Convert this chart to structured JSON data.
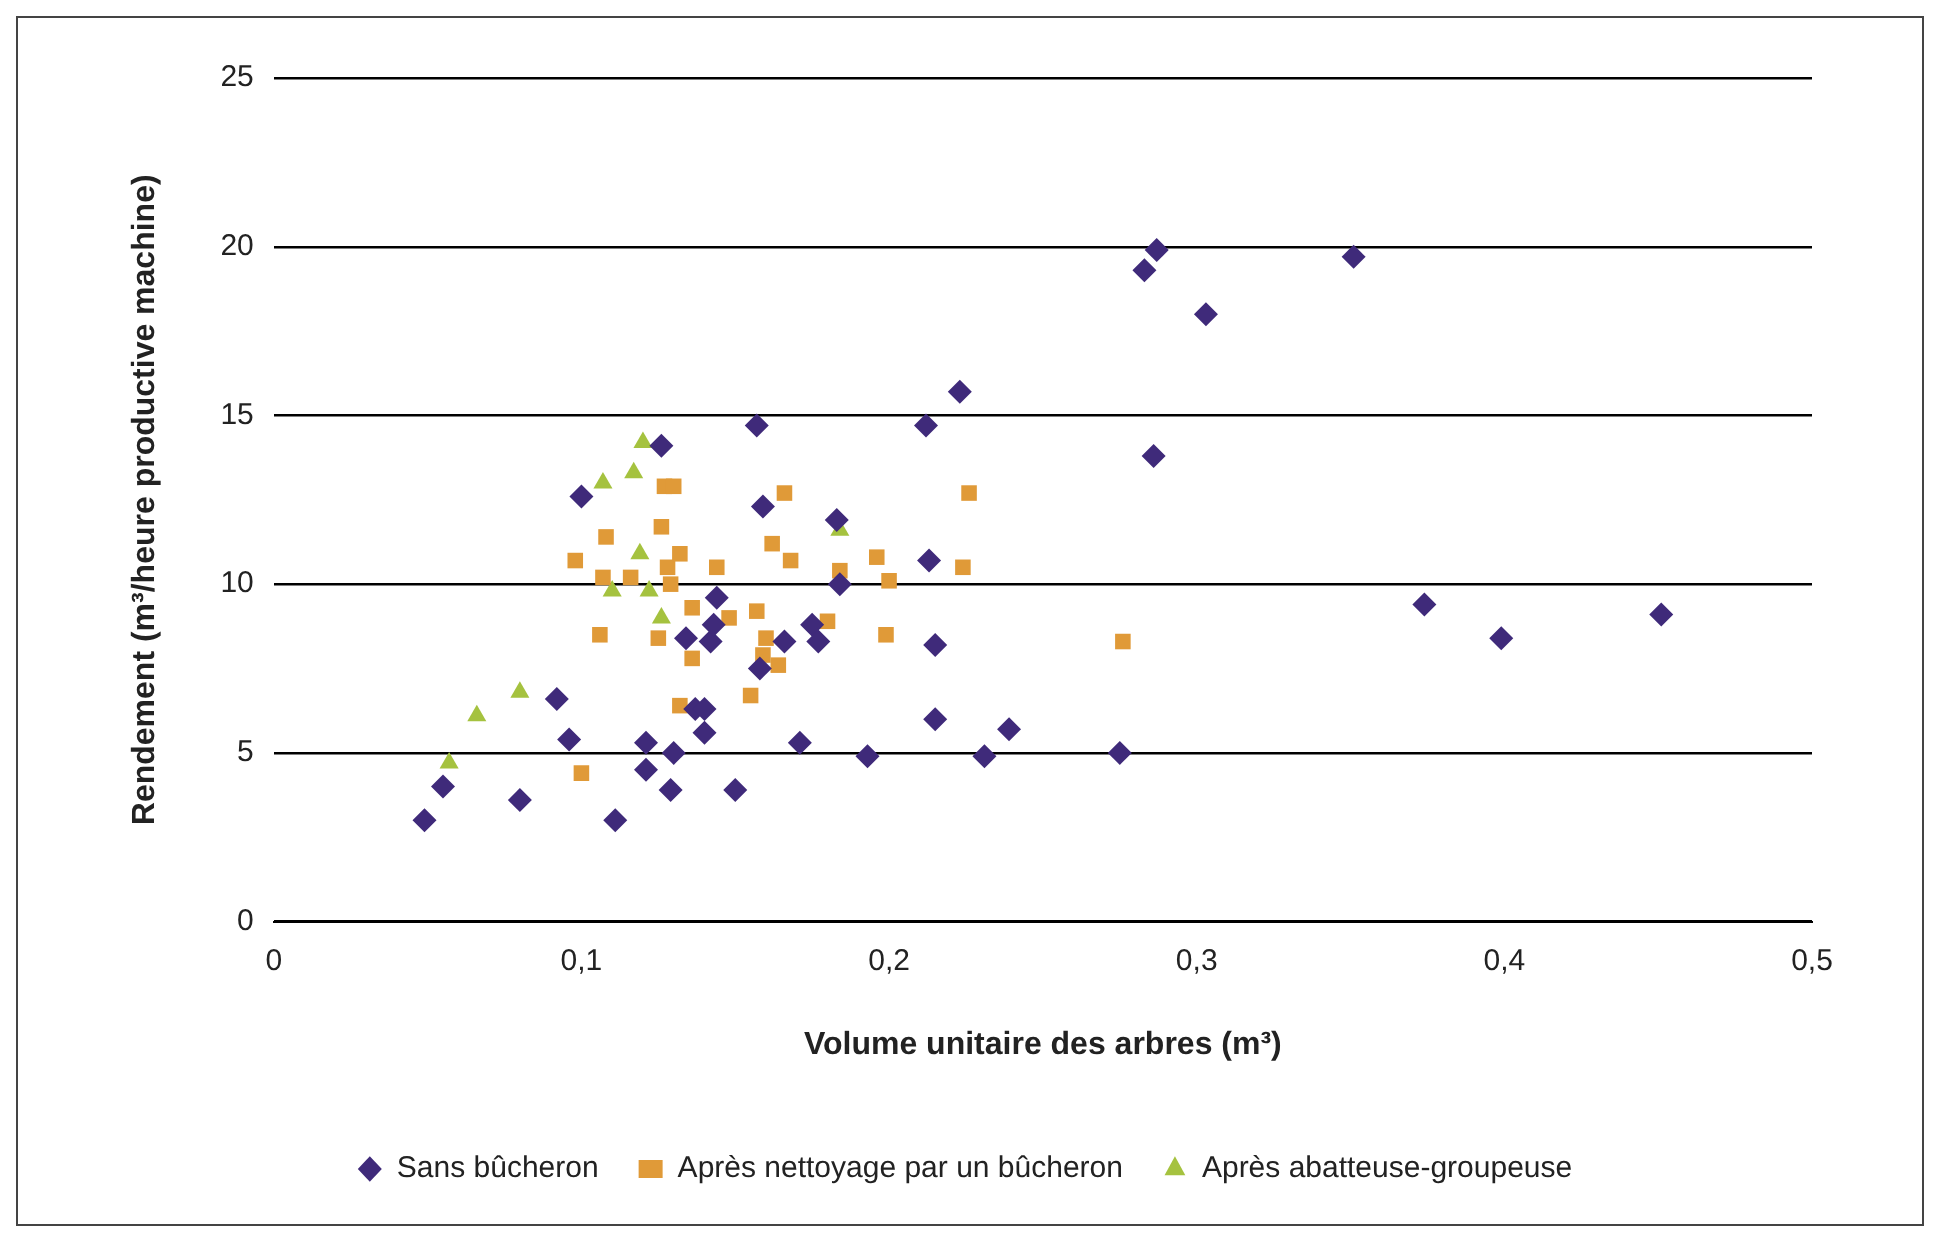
{
  "chart_data": {
    "type": "scatter",
    "xlabel": "Volume unitaire des arbres (m³)",
    "ylabel": "Rendement (m³/heure productive machine)",
    "xlim": [
      0,
      0.5
    ],
    "xticks": [
      0,
      {
        "value": 0.1,
        "label": "0,1"
      },
      {
        "value": 0.2,
        "label": "0,2"
      },
      {
        "value": 0.3,
        "label": "0,3"
      },
      {
        "value": 0.4,
        "label": "0,4"
      },
      {
        "value": 0.5,
        "label": "0,5"
      }
    ],
    "ylim": [
      0,
      25
    ],
    "yticks": [
      0,
      5,
      10,
      15,
      20,
      25
    ],
    "grid": "y",
    "legend": "bottom",
    "series": [
      {
        "name": "Sans bûcheron",
        "color": "#3f2a7a",
        "marker": "diamond",
        "x": [
          0.049,
          0.055,
          0.08,
          0.092,
          0.096,
          0.1,
          0.111,
          0.121,
          0.121,
          0.126,
          0.129,
          0.13,
          0.134,
          0.137,
          0.14,
          0.14,
          0.142,
          0.144,
          0.143,
          0.15,
          0.157,
          0.158,
          0.159,
          0.166,
          0.171,
          0.175,
          0.177,
          0.183,
          0.184,
          0.193,
          0.212,
          0.213,
          0.215,
          0.215,
          0.223,
          0.231,
          0.239,
          0.275,
          0.283,
          0.287,
          0.286,
          0.303,
          0.351,
          0.374,
          0.399,
          0.451
        ],
        "values": [
          3.0,
          4.0,
          3.6,
          6.6,
          5.4,
          12.6,
          3.0,
          5.3,
          4.5,
          14.1,
          3.9,
          5.0,
          8.4,
          6.3,
          6.3,
          5.6,
          8.3,
          9.6,
          8.8,
          3.9,
          14.7,
          7.5,
          12.3,
          8.3,
          5.3,
          8.8,
          8.3,
          11.9,
          10.0,
          4.9,
          14.7,
          10.7,
          8.2,
          6.0,
          15.7,
          4.9,
          5.7,
          5.0,
          19.3,
          19.9,
          13.8,
          18.0,
          19.7,
          9.4,
          8.4,
          9.1
        ]
      },
      {
        "name": "Après nettoyage par un bûcheron",
        "color": "#e09a38",
        "marker": "square",
        "x": [
          0.098,
          0.1,
          0.106,
          0.107,
          0.108,
          0.116,
          0.125,
          0.126,
          0.127,
          0.128,
          0.129,
          0.13,
          0.132,
          0.132,
          0.136,
          0.136,
          0.144,
          0.148,
          0.155,
          0.157,
          0.159,
          0.16,
          0.162,
          0.164,
          0.166,
          0.168,
          0.18,
          0.184,
          0.196,
          0.199,
          0.2,
          0.224,
          0.226,
          0.276
        ],
        "values": [
          10.7,
          4.4,
          8.5,
          10.2,
          11.4,
          10.2,
          8.4,
          11.7,
          12.9,
          10.5,
          10.0,
          12.9,
          10.9,
          6.4,
          9.3,
          7.8,
          10.5,
          9.0,
          6.7,
          9.2,
          7.9,
          8.4,
          11.2,
          7.6,
          12.7,
          10.7,
          8.9,
          10.4,
          10.8,
          8.5,
          10.1,
          10.5,
          12.7,
          8.3
        ]
      },
      {
        "name": "Après abatteuse-groupeuse",
        "color": "#a5c23f",
        "marker": "triangle",
        "x": [
          0.057,
          0.066,
          0.08,
          0.107,
          0.11,
          0.117,
          0.119,
          0.12,
          0.122,
          0.126,
          0.184
        ],
        "values": [
          4.7,
          6.1,
          6.8,
          13.0,
          9.8,
          13.3,
          10.9,
          14.2,
          9.8,
          9.0,
          11.6
        ]
      }
    ]
  }
}
